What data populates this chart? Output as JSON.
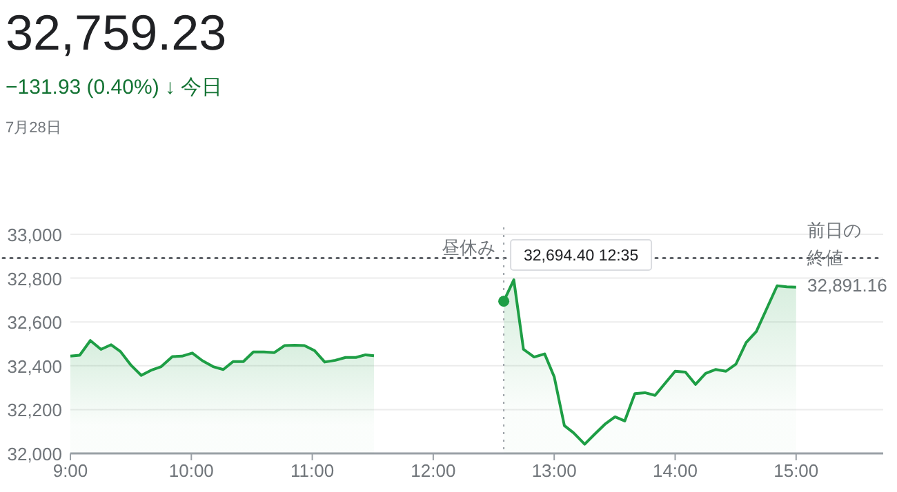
{
  "chart_data": {
    "type": "area",
    "title": "32,759.23",
    "subtitle": "−131.93 (0.40%) ↓ 今日",
    "annotations": [
      "7月28日",
      {
        "text": "32,694.40 12:35",
        "x": 12.583,
        "y": 32694.4
      }
    ],
    "series": [
      {
        "color": "#1e9e45",
        "x": [
          9.0,
          9.077,
          9.165,
          9.253,
          9.337,
          9.414,
          9.502,
          9.586,
          9.674,
          9.751,
          9.843,
          9.923,
          10.008,
          10.092,
          10.18,
          10.264,
          10.345,
          10.43,
          10.513,
          10.6,
          10.686,
          10.77,
          10.854,
          10.935,
          11.019,
          11.103,
          11.19,
          11.275,
          11.36,
          11.44,
          11.51
        ],
        "values": [
          32444,
          32448,
          32515,
          32475,
          32496,
          32465,
          32402,
          32356,
          32381,
          32396,
          32442,
          32444,
          32458,
          32423,
          32396,
          32383,
          32419,
          32419,
          32463,
          32463,
          32460,
          32492,
          32494,
          32492,
          32469,
          32417,
          32425,
          32438,
          32438,
          32450,
          32446
        ]
      },
      {
        "color": "#1e9e45",
        "x": [
          12.583,
          12.666,
          12.746,
          12.834,
          12.921,
          13.0,
          13.084,
          13.16,
          13.252,
          13.335,
          13.419,
          13.503,
          13.583,
          13.667,
          13.75,
          13.834,
          13.918,
          14.0,
          14.085,
          14.168,
          14.252,
          14.336,
          14.42,
          14.503,
          14.587,
          14.671,
          14.755,
          14.843,
          14.923,
          15.0
        ],
        "values": [
          32694.4,
          32792,
          32475,
          32440,
          32454,
          32350,
          32127,
          32094,
          32042,
          32088,
          32133,
          32167,
          32148,
          32273,
          32277,
          32265,
          32321,
          32375,
          32371,
          32315,
          32365,
          32383,
          32375,
          32408,
          32506,
          32556,
          32658,
          32765,
          32760,
          32759
        ]
      }
    ],
    "xlim": [
      9,
      15.72
    ],
    "ylim": [
      32000,
      33000
    ],
    "xticks": [
      {
        "value": 9,
        "label": "9:00"
      },
      {
        "value": 10,
        "label": "10:00"
      },
      {
        "value": 11,
        "label": "11:00"
      },
      {
        "value": 12,
        "label": "12:00"
      },
      {
        "value": 13,
        "label": "13:00"
      },
      {
        "value": 14,
        "label": "14:00"
      },
      {
        "value": 15,
        "label": "15:00"
      }
    ],
    "yticks": [
      {
        "value": 32000,
        "label": "32,000"
      },
      {
        "value": 32200,
        "label": "32,200"
      },
      {
        "value": 32400,
        "label": "32,400"
      },
      {
        "value": 32600,
        "label": "32,600"
      },
      {
        "value": 32800,
        "label": "32,800"
      },
      {
        "value": 33000,
        "label": "33,000"
      }
    ],
    "grid": "y",
    "ref_lines": [
      {
        "axis": "y",
        "value": 32891.16,
        "label": "前日の終値 32,891.16",
        "color": "#5f6368",
        "line_style": "dotted"
      },
      {
        "axis": "x",
        "value": 12.583,
        "label": "昼休み",
        "color": "#9aa0a6",
        "line_style": "dotted"
      }
    ]
  }
}
